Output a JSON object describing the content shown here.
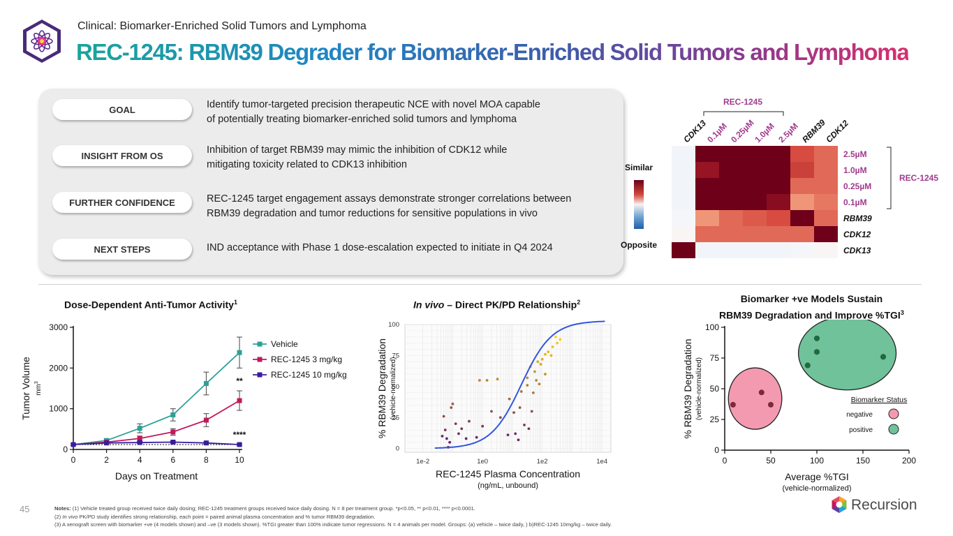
{
  "header": {
    "section": "Clinical: Biomarker-Enriched Solid Tumors and Lymphoma",
    "title": "REC-1245: RBM39 Degrader for Biomarker-Enriched Solid Tumors and Lymphoma"
  },
  "summary": [
    {
      "label": "GOAL",
      "line1": "Identify tumor-targeted precision therapeutic NCE with novel MOA capable",
      "line2": "of potentially treating biomarker-enriched solid tumors and lymphoma"
    },
    {
      "label": "INSIGHT FROM OS",
      "line1": "Inhibition of target RBM39 may mimic the inhibition of CDK12 while",
      "line2": "mitigating toxicity related to CDK13 inhibition"
    },
    {
      "label": "FURTHER CONFIDENCE",
      "line1": "REC-1245 target engagement assays demonstrate stronger correlations between",
      "line2": "RBM39 degradation and tumor reductions for sensitive populations in vivo"
    },
    {
      "label": "NEXT STEPS",
      "line1": "IND acceptance with Phase 1 dose-escalation expected to initiate in Q4 2024",
      "line2": ""
    }
  ],
  "colors": {
    "primary_teal": "#1aa59a",
    "mid_blue": "#3d5bab",
    "magenta": "#a03a8e",
    "heat_high": "#6b0018",
    "heat_low": "#1f5fa6"
  },
  "chart_data": [
    {
      "type": "line",
      "title": "Dose-Dependent Anti-Tumor Activity",
      "title_sup": "1",
      "xlabel": "Days on Treatment",
      "ylabel": "Tumor Volume",
      "ylabel_unit": "mm",
      "ylabel_unit_sup": "3",
      "x": [
        0,
        2,
        4,
        6,
        8,
        10
      ],
      "xlim": [
        0,
        10
      ],
      "ylim": [
        0,
        3000
      ],
      "xticks": [
        "0",
        "2",
        "4",
        "6",
        "8",
        "10"
      ],
      "yticks": [
        "0",
        "1000",
        "2000",
        "3000"
      ],
      "series": [
        {
          "name": "Vehicle",
          "color": "#2aa198",
          "values": [
            120,
            220,
            520,
            850,
            1620,
            2380
          ],
          "err": [
            20,
            40,
            110,
            150,
            280,
            380
          ]
        },
        {
          "name": "REC-1245 3 mg/kg",
          "color": "#c2185b",
          "values": [
            120,
            180,
            270,
            430,
            720,
            1200
          ],
          "err": [
            20,
            30,
            60,
            80,
            160,
            240
          ]
        },
        {
          "name": "REC-1245 10 mg/kg",
          "color": "#3a1d9e",
          "values": [
            120,
            160,
            170,
            180,
            160,
            120
          ],
          "err": [
            20,
            20,
            25,
            25,
            25,
            20
          ]
        }
      ],
      "annotations": [
        "**",
        "****"
      ]
    },
    {
      "type": "scatter",
      "title_italic": "In vivo",
      "title_rest": " – Direct PK/PD Relationship",
      "title_sup": "2",
      "xlabel": "REC-1245 Plasma Concentration",
      "xlabel_sub": "(ng/mL, unbound)",
      "ylabel": "% RBM39 Degradation",
      "ylabel_sub": "(vehicle-normalized)",
      "xscale": "log",
      "xlim": [
        -2.6,
        4.3
      ],
      "ylim": [
        -3,
        100
      ],
      "xticks": [
        "1e-2",
        "1e0",
        "1e2",
        "1e4"
      ],
      "yticks": [
        "0",
        "25",
        "50",
        "75",
        "100"
      ],
      "fit": {
        "ec50_log10": 1.3,
        "hill": 0.85,
        "top": 103,
        "bottom": 0
      },
      "points": [
        {
          "logx": -1.35,
          "y": 10
        },
        {
          "logx": -1.2,
          "y": 8
        },
        {
          "logx": -1.1,
          "y": 5
        },
        {
          "logx": -1.15,
          "y": 1
        },
        {
          "logx": -1.3,
          "y": 26
        },
        {
          "logx": -1.0,
          "y": 36
        },
        {
          "logx": -1.05,
          "y": 33
        },
        {
          "logx": -0.9,
          "y": 20
        },
        {
          "logx": -1.25,
          "y": 15
        },
        {
          "logx": -0.8,
          "y": 12
        },
        {
          "logx": -0.55,
          "y": 8
        },
        {
          "logx": -0.45,
          "y": 22
        },
        {
          "logx": -0.7,
          "y": 16
        },
        {
          "logx": -0.2,
          "y": 9
        },
        {
          "logx": 0.0,
          "y": 18
        },
        {
          "logx": 0.3,
          "y": 30
        },
        {
          "logx": 0.6,
          "y": 25
        },
        {
          "logx": 0.85,
          "y": 11
        },
        {
          "logx": 1.05,
          "y": 29
        },
        {
          "logx": 1.25,
          "y": 33
        },
        {
          "logx": 1.4,
          "y": 19
        },
        {
          "logx": 1.55,
          "y": 16
        },
        {
          "logx": 1.65,
          "y": 30
        },
        {
          "logx": 1.1,
          "y": 12
        },
        {
          "logx": 1.2,
          "y": 7
        },
        {
          "logx": 0.9,
          "y": 40
        },
        {
          "logx": 1.3,
          "y": 46
        },
        {
          "logx": 1.5,
          "y": 51
        },
        {
          "logx": 1.8,
          "y": 55
        },
        {
          "logx": 1.7,
          "y": 45
        },
        {
          "logx": 1.9,
          "y": 52
        },
        {
          "logx": 2.1,
          "y": 60
        },
        {
          "logx": 1.75,
          "y": 62
        },
        {
          "logx": 1.6,
          "y": 66
        },
        {
          "logx": 1.85,
          "y": 70
        },
        {
          "logx": 2.0,
          "y": 72
        },
        {
          "logx": 2.2,
          "y": 78
        },
        {
          "logx": 2.35,
          "y": 82
        },
        {
          "logx": 2.5,
          "y": 85
        },
        {
          "logx": 2.1,
          "y": 76
        },
        {
          "logx": 1.95,
          "y": 68
        },
        {
          "logx": 2.3,
          "y": 75
        },
        {
          "logx": -0.1,
          "y": 55
        },
        {
          "logx": 0.5,
          "y": 56
        },
        {
          "logx": 0.15,
          "y": 55
        },
        {
          "logx": 2.6,
          "y": 88
        },
        {
          "logx": 2.45,
          "y": 90
        },
        {
          "logx": 1.5,
          "y": 57
        }
      ]
    },
    {
      "type": "scatter",
      "title_line1": "Biomarker +ve Models Sustain",
      "title_line2": "RBM39 Degradation and Improve %TGI",
      "title_sup": "3",
      "xlabel": "Average %TGI",
      "xlabel_sub": "(vehicle-normalized)",
      "ylabel": "% RBM39 Degradation",
      "ylabel_sub": "(vehicle-normalized)",
      "xlim": [
        0,
        200
      ],
      "ylim": [
        0,
        100
      ],
      "xticks": [
        "0",
        "50",
        "100",
        "150",
        "200"
      ],
      "yticks": [
        "0",
        "25",
        "50",
        "75",
        "100"
      ],
      "legend_title": "Biomarker Status",
      "series": [
        {
          "name": "negative",
          "color": "#f49ab0",
          "points": [
            [
              9,
              37
            ],
            [
              40,
              47
            ],
            [
              50,
              37
            ]
          ]
        },
        {
          "name": "positive",
          "color": "#6fc29a",
          "points": [
            [
              100,
              91
            ],
            [
              100,
              80
            ],
            [
              90,
              69
            ],
            [
              172,
              76
            ]
          ]
        }
      ]
    },
    {
      "type": "heatmap",
      "row_labels": [
        "2.5µM",
        "1.0µM",
        "0.25µM",
        "0.1µM",
        "RBM39",
        "CDK12",
        "CDK13"
      ],
      "col_labels": [
        "CDK13",
        "0.1µM",
        "0.25µM",
        "1.0µM",
        "2.5µM",
        "RBM39",
        "CDK12"
      ],
      "group_label": "REC-1245",
      "scale_high": "Similar",
      "scale_low": "Opposite",
      "values": [
        [
          -0.1,
          1.0,
          1.0,
          1.0,
          1.0,
          0.6,
          0.5
        ],
        [
          -0.1,
          0.85,
          1.0,
          1.0,
          1.0,
          0.65,
          0.5
        ],
        [
          -0.1,
          1.0,
          1.0,
          1.0,
          1.0,
          0.5,
          0.5
        ],
        [
          -0.1,
          1.0,
          1.0,
          1.0,
          0.9,
          0.35,
          0.45
        ],
        [
          -0.05,
          0.35,
          0.5,
          0.55,
          0.6,
          1.0,
          0.5
        ],
        [
          0.0,
          0.5,
          0.5,
          0.5,
          0.5,
          0.5,
          1.0
        ],
        [
          1.0,
          -0.1,
          -0.1,
          -0.1,
          -0.1,
          -0.05,
          0.0
        ]
      ]
    }
  ],
  "footer": {
    "page": "45",
    "notes_label": "Notes:",
    "note1": " (1) Vehicle treated group received twice daily dosing; REC-1245 treatment groups received twice daily dosing.  N = 8 per treatment group. *p<0.05, ** p<0.01, **** p<0.0001.",
    "note2_pre": "(2) ",
    "note2_italic": "In vivo",
    "note2_rest": " PK/PD study identifies strong relationship, each point = paired animal plasma concentration and % tumor RBM39 degradation.",
    "note3": "(3) A xenograft screen with biomarker +ve (4 models shown) and –ve (3 models shown). %TGI greater than 100% indicate tumor regressions. N = 4 animals per model. Groups: (a) vehicle – twice daily, ) b)REC-1245 10mg/kg – twice daily.",
    "brand": "Recursion"
  }
}
